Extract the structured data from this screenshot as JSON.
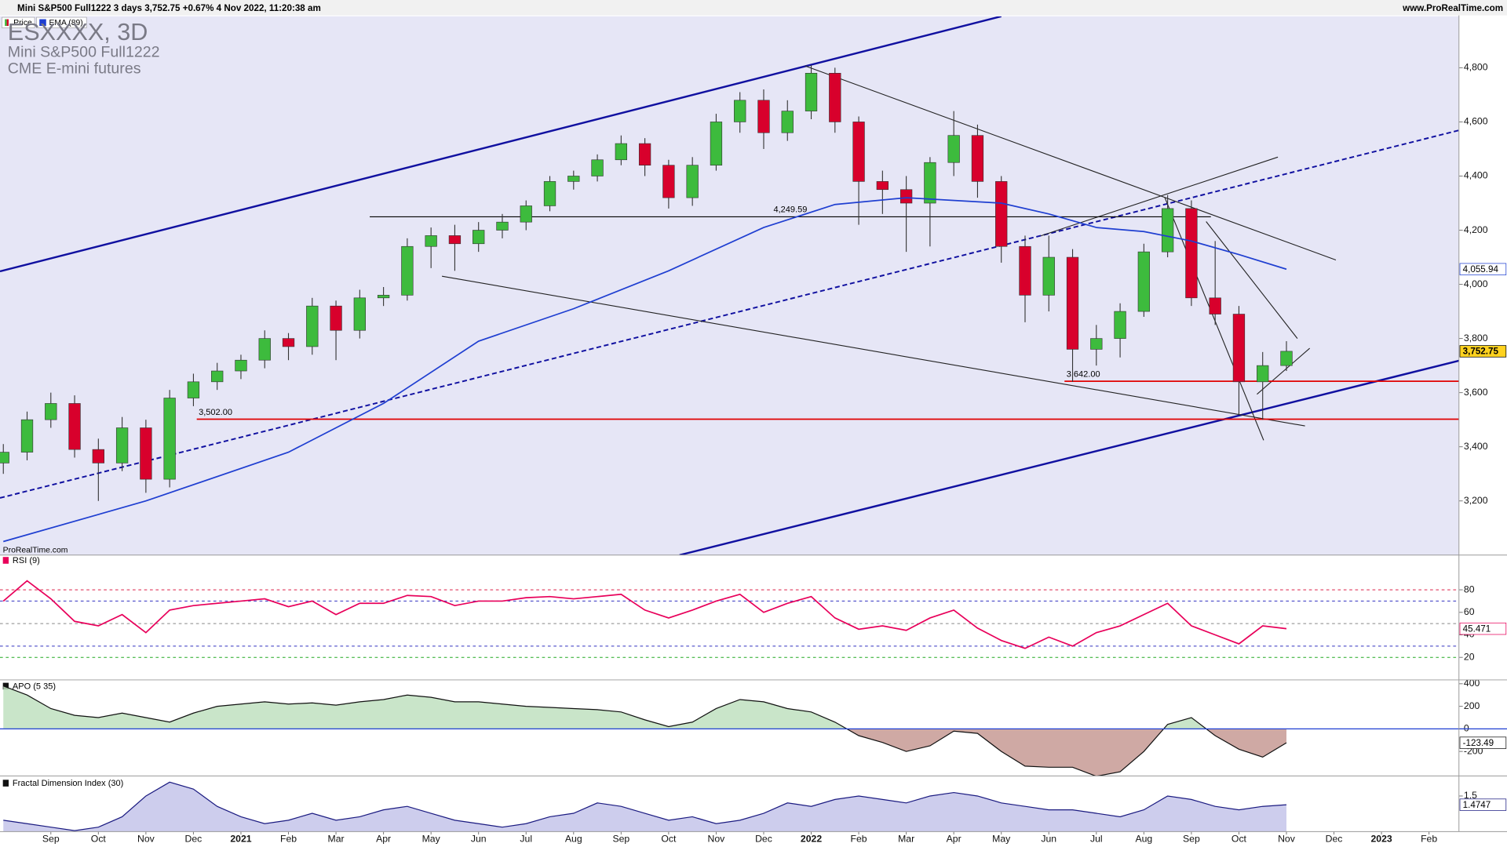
{
  "header": {
    "title": "Mini S&P500 Full1222 3 days 3,752.75 +0.67% 4 Nov 2022, 11:20:38 am",
    "site": "www.ProRealTime.com"
  },
  "chart_data": [
    {
      "type": "candlestick",
      "title": "ESXXXX, 3D",
      "subtitle": "Mini S&P500 Full1222",
      "exchange": "CME E-mini futures",
      "source": "ProRealTime.com",
      "xlim": [
        -1.07,
        29.63
      ],
      "ylim": [
        3000,
        4990
      ],
      "yticks": [
        {
          "value": 3200,
          "label": "3,200"
        },
        {
          "value": 3400,
          "label": "3,400"
        },
        {
          "value": 3600,
          "label": "3,600"
        },
        {
          "value": 3800,
          "label": "3,800"
        },
        {
          "value": 4000,
          "label": "4,000"
        },
        {
          "value": 4200,
          "label": "4,200"
        },
        {
          "value": 4400,
          "label": "4,400"
        },
        {
          "value": 4600,
          "label": "4,600"
        },
        {
          "value": 4800,
          "label": "4,800"
        }
      ],
      "series": [
        {
          "name": "Price",
          "up_color": "#3dbb3d",
          "down_color": "#d8002c",
          "label_fill": "#ffd21f",
          "color": "#000000",
          "last_value_label": "3,752.75",
          "x": [
            -1,
            -0.5,
            0,
            0.5,
            1,
            1.5,
            2,
            2.5,
            3,
            3.5,
            4,
            4.5,
            5,
            5.5,
            6,
            6.5,
            7,
            7.5,
            8,
            8.5,
            9,
            9.5,
            10,
            10.5,
            11,
            11.5,
            12,
            12.5,
            13,
            13.5,
            14,
            14.5,
            15,
            15.5,
            16,
            16.5,
            17,
            17.5,
            18,
            18.5,
            19,
            19.5,
            20,
            20.5,
            21,
            21.5,
            22,
            22.5,
            23,
            23.5,
            24,
            24.5,
            25,
            25.5,
            26
          ],
          "open": [
            3340,
            3380,
            3500,
            3560,
            3390,
            3340,
            3470,
            3280,
            3580,
            3640,
            3680,
            3720,
            3800,
            3770,
            3920,
            3830,
            3950,
            3960,
            4140,
            4180,
            4150,
            4200,
            4230,
            4290,
            4380,
            4400,
            4460,
            4520,
            4440,
            4320,
            4440,
            4600,
            4680,
            4560,
            4640,
            4780,
            4600,
            4380,
            4350,
            4300,
            4450,
            4550,
            4380,
            4140,
            3960,
            4100,
            3760,
            3800,
            3900,
            4120,
            4280,
            3950,
            3890,
            3640,
            3700
          ],
          "high": [
            3410,
            3530,
            3600,
            3590,
            3430,
            3510,
            3500,
            3610,
            3670,
            3710,
            3740,
            3830,
            3820,
            3950,
            3940,
            3980,
            3990,
            4170,
            4210,
            4220,
            4230,
            4260,
            4310,
            4400,
            4420,
            4480,
            4550,
            4540,
            4460,
            4470,
            4630,
            4710,
            4720,
            4680,
            4810,
            4800,
            4620,
            4420,
            4400,
            4470,
            4640,
            4590,
            4400,
            4180,
            4180,
            4130,
            3850,
            3930,
            4150,
            4330,
            4310,
            4160,
            3920,
            3750,
            3790
          ],
          "low": [
            3300,
            3350,
            3470,
            3360,
            3200,
            3310,
            3230,
            3250,
            3550,
            3610,
            3650,
            3690,
            3720,
            3740,
            3720,
            3800,
            3920,
            3940,
            4060,
            4050,
            4120,
            4170,
            4200,
            4270,
            4350,
            4380,
            4440,
            4400,
            4280,
            4290,
            4420,
            4560,
            4500,
            4530,
            4610,
            4560,
            4220,
            4260,
            4120,
            4140,
            4400,
            4320,
            4080,
            3860,
            3900,
            3640,
            3700,
            3730,
            3880,
            4100,
            3920,
            3850,
            3520,
            3500,
            3680
          ],
          "close": [
            3380,
            3500,
            3560,
            3390,
            3340,
            3470,
            3280,
            3580,
            3640,
            3680,
            3720,
            3800,
            3770,
            3920,
            3830,
            3950,
            3960,
            4140,
            4180,
            4150,
            4200,
            4230,
            4290,
            4380,
            4400,
            4460,
            4520,
            4440,
            4320,
            4440,
            4600,
            4680,
            4560,
            4640,
            4780,
            4600,
            4380,
            4350,
            4300,
            4450,
            4550,
            4380,
            4140,
            3960,
            4100,
            3760,
            3800,
            3900,
            4120,
            4280,
            3950,
            3890,
            3640,
            3700,
            3752.75
          ]
        },
        {
          "name": "EMA (89)",
          "color": "#1f3fd1",
          "label_fill": "#ffffff",
          "last_value_label": "4,055.94",
          "x": [
            -1,
            2,
            5,
            7,
            9,
            11,
            13,
            15,
            16.5,
            18,
            20,
            21,
            22,
            23,
            24,
            25,
            26
          ],
          "values": [
            3050,
            3200,
            3380,
            3560,
            3790,
            3910,
            4050,
            4210,
            4295,
            4320,
            4300,
            4260,
            4210,
            4195,
            4160,
            4110,
            4055.94
          ]
        }
      ],
      "levels": [
        {
          "value": 4249.59,
          "label": "4,249.59",
          "x": [
            6.71,
            24.41
          ],
          "color": "#000000",
          "label_at": "middle"
        },
        {
          "value": 3642,
          "label": "3,642.00",
          "x": [
            21.33,
            29.63
          ],
          "color": "#e00000",
          "label_at": "start"
        },
        {
          "value": 3502,
          "label": "3,502.00",
          "x": [
            3.07,
            29.63
          ],
          "color": "#e00000",
          "label_at": "start"
        }
      ],
      "trendlines": [
        {
          "x": [
            -1.07,
            20.0
          ],
          "y": [
            4048,
            4990
          ],
          "color": "#1010a0",
          "style": "channel"
        },
        {
          "x": [
            13.23,
            29.63
          ],
          "y": [
            3000,
            3718
          ],
          "color": "#1010a0",
          "style": "channel"
        },
        {
          "x": [
            -1.07,
            29.63
          ],
          "y": [
            3211,
            4569
          ],
          "color": "#1010a0",
          "style": "dashed"
        },
        {
          "x": [
            15.87,
            27.04
          ],
          "y": [
            4807,
            4090
          ],
          "color": "#222222",
          "style": "thin"
        },
        {
          "x": [
            20.83,
            25.82
          ],
          "y": [
            4179,
            4470
          ],
          "color": "#222222",
          "style": "thin"
        },
        {
          "x": [
            8.23,
            26.39
          ],
          "y": [
            4030,
            3477
          ],
          "color": "#222222",
          "style": "thin"
        },
        {
          "x": [
            23.44,
            25.52
          ],
          "y": [
            4321,
            3424
          ],
          "color": "#222222",
          "style": "thin"
        },
        {
          "x": [
            24.31,
            26.23
          ],
          "y": [
            4232,
            3800
          ],
          "color": "#222222",
          "style": "thin"
        },
        {
          "x": [
            25.38,
            26.49
          ],
          "y": [
            3594,
            3764
          ],
          "color": "#222222",
          "style": "thin"
        }
      ]
    },
    {
      "type": "line",
      "title": "RSI (9)",
      "xlim": [
        -1.07,
        29.63
      ],
      "ylim": [
        0,
        110
      ],
      "yticks": [
        20,
        40,
        60,
        80
      ],
      "ref_lines": [
        {
          "value": 80,
          "color": "#d8002c"
        },
        {
          "value": 70,
          "color": "#3030c0"
        },
        {
          "value": 50,
          "color": "#888888"
        },
        {
          "value": 30,
          "color": "#3030c0"
        },
        {
          "value": 20,
          "color": "#22aa22"
        }
      ],
      "series": [
        {
          "name": "RSI (9)",
          "color": "#e8005a",
          "label_fill": "#ffffff",
          "x": [
            -1,
            -0.5,
            0,
            0.5,
            1,
            1.5,
            2,
            2.5,
            3,
            3.5,
            4,
            4.5,
            5,
            5.5,
            6,
            6.5,
            7,
            7.5,
            8,
            8.5,
            9,
            9.5,
            10,
            10.5,
            11,
            11.5,
            12,
            12.5,
            13,
            13.5,
            14,
            14.5,
            15,
            15.5,
            16,
            16.5,
            17,
            17.5,
            18,
            18.5,
            19,
            19.5,
            20,
            20.5,
            21,
            21.5,
            22,
            22.5,
            23,
            23.5,
            24,
            24.5,
            25,
            25.5,
            26
          ],
          "values": [
            70,
            88,
            72,
            52,
            48,
            58,
            42,
            62,
            66,
            68,
            70,
            72,
            65,
            70,
            58,
            68,
            68,
            75,
            74,
            66,
            70,
            70,
            73,
            74,
            72,
            74,
            76,
            62,
            55,
            62,
            70,
            76,
            60,
            68,
            74,
            55,
            45,
            48,
            44,
            55,
            62,
            46,
            35,
            28,
            38,
            30,
            42,
            48,
            58,
            68,
            48,
            40,
            32,
            48,
            45.471
          ]
        }
      ]
    },
    {
      "type": "area",
      "title": "APO (5 35)",
      "xlim": [
        -1.07,
        29.63
      ],
      "ylim": [
        -417,
        434
      ],
      "yticks": [
        -200,
        0,
        200,
        400
      ],
      "zero_line_color": "#1f3fd1",
      "series": [
        {
          "name": "APO (5 35)",
          "color": "#111111",
          "fill": "#bfe0bf",
          "fill_negative": "#c79a94",
          "label_fill": "#ffffff",
          "x": [
            -1,
            -0.5,
            0,
            0.5,
            1,
            1.5,
            2,
            2.5,
            3,
            3.5,
            4,
            4.5,
            5,
            5.5,
            6,
            6.5,
            7,
            7.5,
            8,
            8.5,
            9,
            9.5,
            10,
            10.5,
            11,
            11.5,
            12,
            12.5,
            13,
            13.5,
            14,
            14.5,
            15,
            15.5,
            16,
            16.5,
            17,
            17.5,
            18,
            18.5,
            19,
            19.5,
            20,
            20.5,
            21,
            21.5,
            22,
            22.5,
            23,
            23.5,
            24,
            24.5,
            25,
            25.5,
            26
          ],
          "values": [
            380,
            300,
            180,
            120,
            100,
            140,
            100,
            60,
            140,
            200,
            220,
            240,
            220,
            230,
            210,
            240,
            260,
            300,
            280,
            240,
            240,
            220,
            200,
            190,
            180,
            170,
            150,
            80,
            20,
            60,
            180,
            260,
            240,
            180,
            150,
            60,
            -60,
            -120,
            -200,
            -150,
            -20,
            -40,
            -200,
            -330,
            -340,
            -340,
            -420,
            -380,
            -200,
            40,
            100,
            -60,
            -180,
            -250,
            -123.49
          ]
        }
      ]
    },
    {
      "type": "area",
      "title": "Fractal Dimension Index (30)",
      "xlim": [
        -1.07,
        29.63
      ],
      "ylim": [
        1.397,
        1.558
      ],
      "yticks": [
        1.5
      ],
      "xticks": [
        {
          "value": 0,
          "label": "Sep"
        },
        {
          "value": 1,
          "label": "Oct"
        },
        {
          "value": 2,
          "label": "Nov"
        },
        {
          "value": 3,
          "label": "Dec"
        },
        {
          "value": 4,
          "label": "2021"
        },
        {
          "value": 5,
          "label": "Feb"
        },
        {
          "value": 6,
          "label": "Mar"
        },
        {
          "value": 7,
          "label": "Apr"
        },
        {
          "value": 8,
          "label": "May"
        },
        {
          "value": 9,
          "label": "Jun"
        },
        {
          "value": 10,
          "label": "Jul"
        },
        {
          "value": 11,
          "label": "Aug"
        },
        {
          "value": 12,
          "label": "Sep"
        },
        {
          "value": 13,
          "label": "Oct"
        },
        {
          "value": 14,
          "label": "Nov"
        },
        {
          "value": 15,
          "label": "Dec"
        },
        {
          "value": 16,
          "label": "2022"
        },
        {
          "value": 17,
          "label": "Feb"
        },
        {
          "value": 18,
          "label": "Mar"
        },
        {
          "value": 19,
          "label": "Apr"
        },
        {
          "value": 20,
          "label": "May"
        },
        {
          "value": 21,
          "label": "Jun"
        },
        {
          "value": 22,
          "label": "Jul"
        },
        {
          "value": 23,
          "label": "Aug"
        },
        {
          "value": 24,
          "label": "Sep"
        },
        {
          "value": 25,
          "label": "Oct"
        },
        {
          "value": 26,
          "label": "Nov"
        },
        {
          "value": 27,
          "label": "Dec"
        },
        {
          "value": 28,
          "label": "2023"
        },
        {
          "value": 29,
          "label": "Feb"
        }
      ],
      "series": [
        {
          "name": "Fractal Dimension Index (30)",
          "color": "#1a1a80",
          "fill": "#c4c4ea",
          "label_fill": "#ffffff",
          "x": [
            -1,
            -0.5,
            0,
            0.5,
            1,
            1.5,
            2,
            2.5,
            3,
            3.5,
            4,
            4.5,
            5,
            5.5,
            6,
            6.5,
            7,
            7.5,
            8,
            8.5,
            9,
            9.5,
            10,
            10.5,
            11,
            11.5,
            12,
            12.5,
            13,
            13.5,
            14,
            14.5,
            15,
            15.5,
            16,
            16.5,
            17,
            17.5,
            18,
            18.5,
            19,
            19.5,
            20,
            20.5,
            21,
            21.5,
            22,
            22.5,
            23,
            23.5,
            24,
            24.5,
            25,
            25.5,
            26
          ],
          "values": [
            1.43,
            1.42,
            1.41,
            1.4,
            1.41,
            1.44,
            1.5,
            1.54,
            1.52,
            1.47,
            1.44,
            1.42,
            1.43,
            1.45,
            1.43,
            1.44,
            1.46,
            1.47,
            1.45,
            1.43,
            1.42,
            1.41,
            1.42,
            1.44,
            1.45,
            1.48,
            1.47,
            1.45,
            1.43,
            1.44,
            1.42,
            1.43,
            1.45,
            1.48,
            1.47,
            1.49,
            1.5,
            1.49,
            1.48,
            1.5,
            1.51,
            1.5,
            1.48,
            1.47,
            1.46,
            1.46,
            1.45,
            1.44,
            1.46,
            1.5,
            1.49,
            1.47,
            1.46,
            1.47,
            1.4747
          ]
        }
      ]
    }
  ]
}
